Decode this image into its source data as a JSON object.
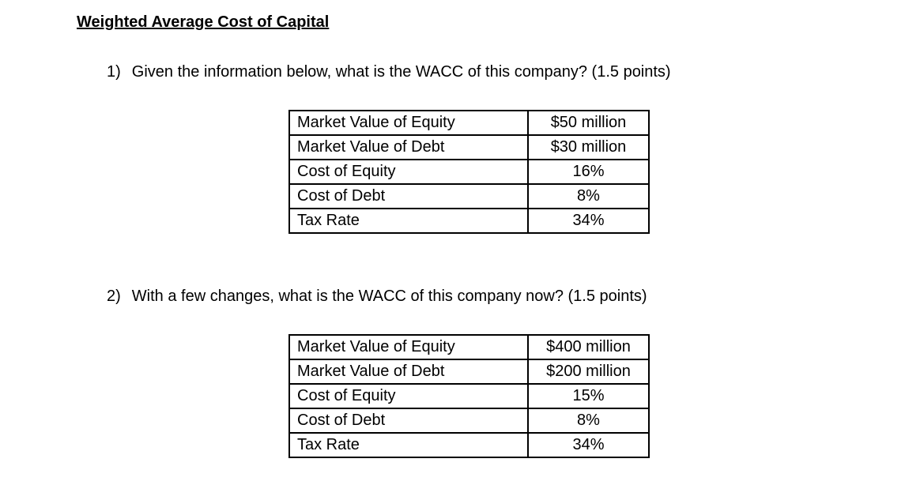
{
  "page": {
    "title": "Weighted Average Cost of Capital"
  },
  "questions": [
    {
      "number": "1)",
      "text": "Given the information below, what is the WACC of this company? (1.5 points)",
      "table": {
        "rows": [
          {
            "label": "Market Value of Equity",
            "value": "$50 million"
          },
          {
            "label": "Market Value of Debt",
            "value": "$30 million"
          },
          {
            "label": "Cost of Equity",
            "value": "16%"
          },
          {
            "label": "Cost of Debt",
            "value": "8%"
          },
          {
            "label": "Tax Rate",
            "value": "34%"
          }
        ]
      }
    },
    {
      "number": "2)",
      "text": "With a few changes, what is the WACC of this company now? (1.5 points)",
      "table": {
        "rows": [
          {
            "label": "Market Value of Equity",
            "value": "$400 million"
          },
          {
            "label": "Market Value of Debt",
            "value": "$200 million"
          },
          {
            "label": "Cost of Equity",
            "value": "15%"
          },
          {
            "label": "Cost of Debt",
            "value": "8%"
          },
          {
            "label": "Tax Rate",
            "value": "34%"
          }
        ]
      }
    }
  ]
}
